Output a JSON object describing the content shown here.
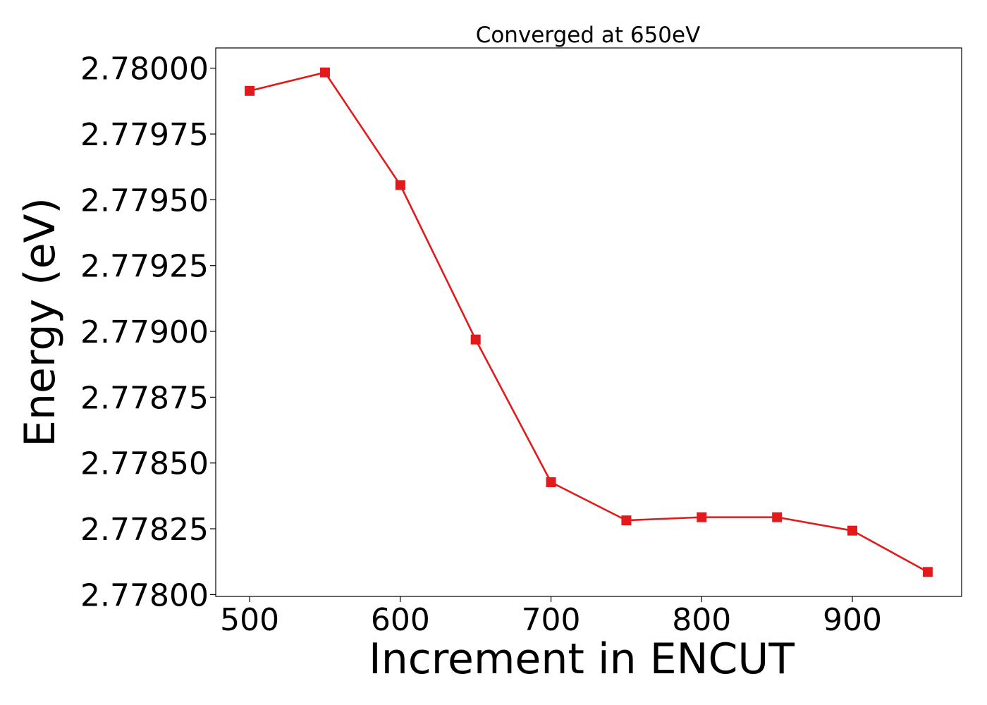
{
  "chart_data": {
    "type": "line",
    "title": "Converged at 650eV",
    "xlabel": "Increment in ENCUT",
    "ylabel": "Energy (eV)",
    "x": [
      500,
      550,
      600,
      650,
      700,
      750,
      800,
      850,
      900,
      950
    ],
    "series": [
      {
        "color": "#e31a1c",
        "marker": "square",
        "values": [
          2.779914,
          2.779984,
          2.779556,
          2.778969,
          2.778427,
          2.778282,
          2.778294,
          2.778294,
          2.778243,
          2.778086
        ]
      }
    ],
    "xlim": [
      477.5,
      972.5
    ],
    "ylim": [
      2.777993,
      2.780077
    ],
    "xticks": [
      500,
      600,
      700,
      800,
      900
    ],
    "xtick_labels": [
      "500",
      "600",
      "700",
      "800",
      "900"
    ],
    "yticks": [
      2.778,
      2.77825,
      2.7785,
      2.77875,
      2.779,
      2.77925,
      2.7795,
      2.77975,
      2.78
    ],
    "ytick_labels": [
      "2.77800",
      "2.77825",
      "2.77850",
      "2.77875",
      "2.77900",
      "2.77925",
      "2.77950",
      "2.77975",
      "2.78000"
    ],
    "grid": false,
    "legend": false
  }
}
